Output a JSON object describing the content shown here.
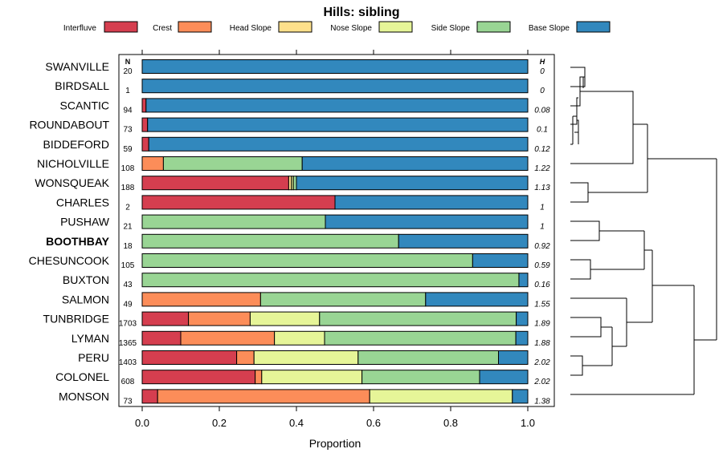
{
  "chart_data": {
    "type": "bar",
    "stacked": true,
    "orientation": "horizontal",
    "title": "Hills: sibling",
    "xlabel": "Proportion",
    "xlim": [
      0,
      1
    ],
    "x_ticks": [
      "0.0",
      "0.2",
      "0.4",
      "0.6",
      "0.8",
      "1.0"
    ],
    "x_tick_values": [
      0,
      0.2,
      0.4,
      0.6,
      0.8,
      1.0
    ],
    "n_header": "N",
    "h_header": "H",
    "legend": [
      {
        "name": "Interfluve",
        "color": "#d53e4f"
      },
      {
        "name": "Crest",
        "color": "#fc8d59"
      },
      {
        "name": "Head Slope",
        "color": "#fee08b"
      },
      {
        "name": "Nose Slope",
        "color": "#e6f598"
      },
      {
        "name": "Side Slope",
        "color": "#99d594"
      },
      {
        "name": "Base Slope",
        "color": "#3288bd"
      }
    ],
    "categories": [
      "SWANVILLE",
      "BIRDSALL",
      "SCANTIC",
      "ROUNDABOUT",
      "BIDDEFORD",
      "NICHOLVILLE",
      "WONSQUEAK",
      "CHARLES",
      "PUSHAW",
      "BOOTHBAY",
      "CHESUNCOOK",
      "BUXTON",
      "SALMON",
      "TUNBRIDGE",
      "LYMAN",
      "PERU",
      "COLONEL",
      "MONSON"
    ],
    "highlight": "BOOTHBAY",
    "n": [
      "20",
      "1",
      "94",
      "73",
      "59",
      "108",
      "188",
      "2",
      "21",
      "18",
      "105",
      "43",
      "49",
      "1703",
      "1365",
      "1403",
      "608",
      "73"
    ],
    "h": [
      "0",
      "0",
      "0.08",
      "0.1",
      "0.12",
      "1.22",
      "1.13",
      "1",
      "1",
      "0.92",
      "0.59",
      "0.16",
      "1.55",
      "1.89",
      "1.88",
      "2.02",
      "2.02",
      "1.38"
    ],
    "series": [
      {
        "name": "Interfluve",
        "values": [
          0,
          0,
          0.01,
          0.014,
          0.017,
          0,
          0.38,
          0.5,
          0,
          0,
          0,
          0,
          0,
          0.12,
          0.1,
          0.245,
          0.293,
          0.04
        ]
      },
      {
        "name": "Crest",
        "values": [
          0,
          0,
          0,
          0,
          0,
          0.055,
          0,
          0,
          0,
          0,
          0,
          0,
          0.307,
          0.16,
          0.243,
          0.045,
          0.017,
          0.55
        ]
      },
      {
        "name": "Head Slope",
        "values": [
          0,
          0,
          0,
          0,
          0,
          0,
          0.007,
          0,
          0,
          0,
          0,
          0,
          0,
          0,
          0,
          0,
          0,
          0
        ]
      },
      {
        "name": "Nose Slope",
        "values": [
          0,
          0,
          0,
          0,
          0,
          0,
          0.005,
          0,
          0,
          0,
          0,
          0,
          0,
          0.18,
          0.13,
          0.27,
          0.26,
          0.37
        ]
      },
      {
        "name": "Side Slope",
        "values": [
          0,
          0,
          0,
          0,
          0,
          0.36,
          0.008,
          0,
          0.475,
          0.665,
          0.857,
          0.977,
          0.428,
          0.51,
          0.496,
          0.364,
          0.305,
          0
        ]
      },
      {
        "name": "Base Slope",
        "values": [
          1,
          1,
          0.99,
          0.986,
          0.983,
          0.585,
          0.6,
          0.5,
          0.525,
          0.335,
          0.143,
          0.023,
          0.265,
          0.03,
          0.031,
          0.076,
          0.125,
          0.04
        ]
      }
    ]
  }
}
